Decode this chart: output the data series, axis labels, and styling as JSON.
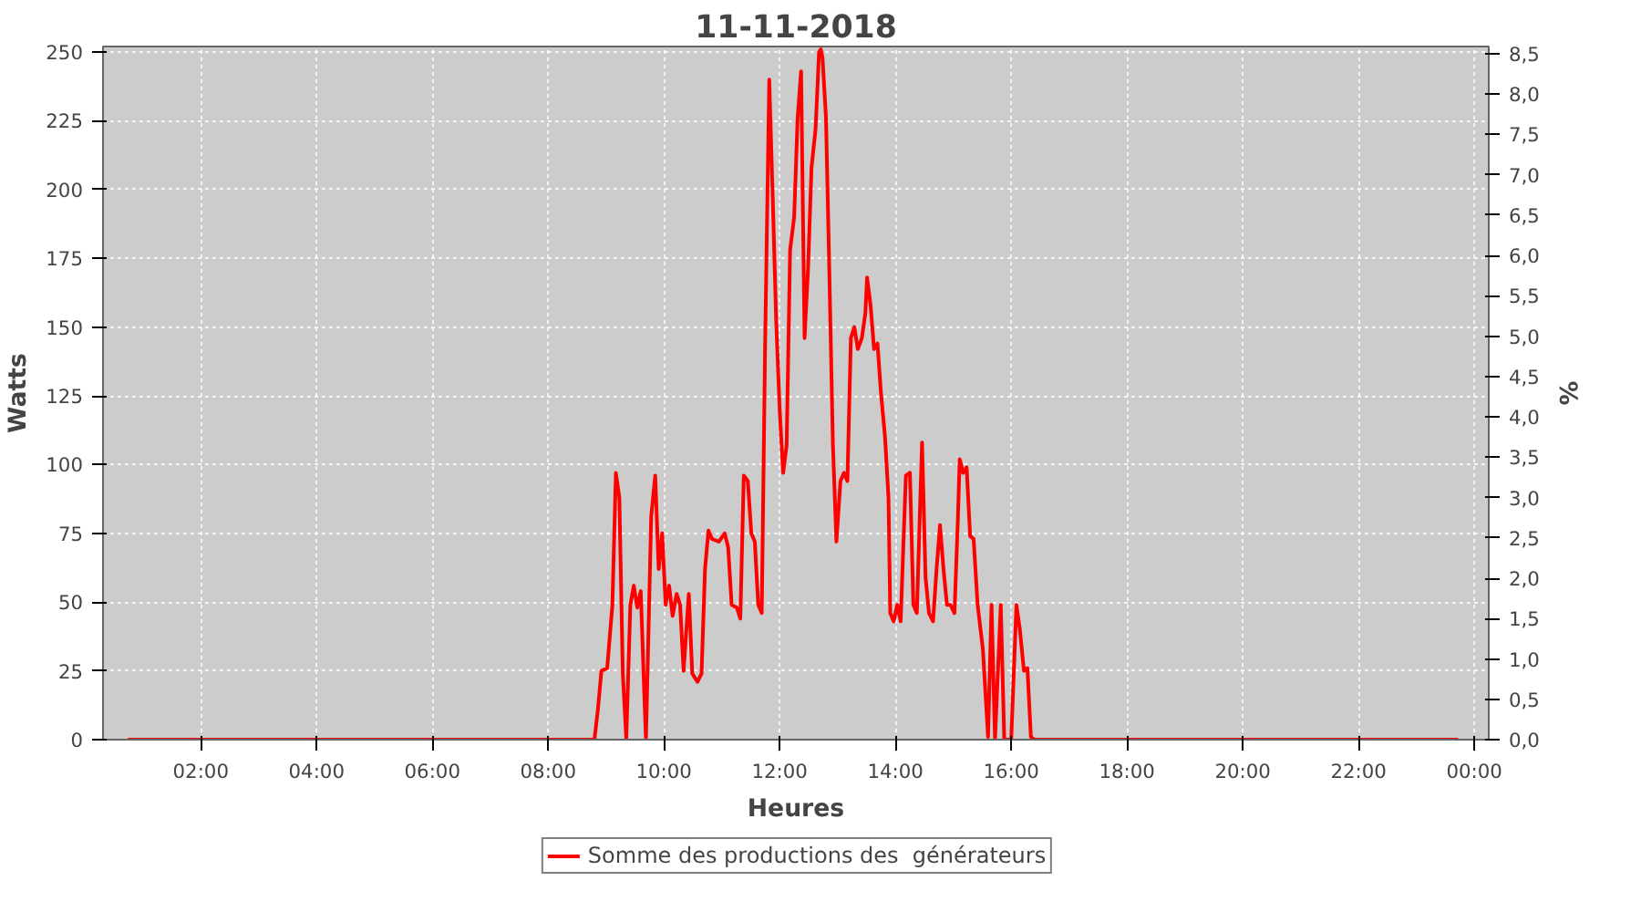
{
  "chart_data": {
    "type": "line",
    "title": "11-11-2018",
    "xlabel": "Heures",
    "ylabel": "Watts",
    "y2label": "%",
    "xlim": [
      0.31,
      24.25
    ],
    "xticks": [
      {
        "value": 2,
        "label": "02:00"
      },
      {
        "value": 4,
        "label": "04:00"
      },
      {
        "value": 6,
        "label": "06:00"
      },
      {
        "value": 8,
        "label": "08:00"
      },
      {
        "value": 10,
        "label": "10:00"
      },
      {
        "value": 12,
        "label": "12:00"
      },
      {
        "value": 14,
        "label": "14:00"
      },
      {
        "value": 16,
        "label": "16:00"
      },
      {
        "value": 18,
        "label": "18:00"
      },
      {
        "value": 20,
        "label": "20:00"
      },
      {
        "value": 22,
        "label": "22:00"
      },
      {
        "value": 24,
        "label": "00:00"
      }
    ],
    "ylim": [
      0,
      252
    ],
    "yticks": [
      0,
      25,
      50,
      75,
      100,
      125,
      150,
      175,
      200,
      225,
      250
    ],
    "y2lim": [
      0,
      8.59
    ],
    "y2ticks": [
      {
        "value": 0,
        "label": "0,0"
      },
      {
        "value": 0.5,
        "label": "0,5"
      },
      {
        "value": 1,
        "label": "1,0"
      },
      {
        "value": 1.5,
        "label": "1,5"
      },
      {
        "value": 2,
        "label": "2,0"
      },
      {
        "value": 2.5,
        "label": "2,5"
      },
      {
        "value": 3,
        "label": "3,0"
      },
      {
        "value": 3.5,
        "label": "3,5"
      },
      {
        "value": 4,
        "label": "4,0"
      },
      {
        "value": 4.5,
        "label": "4,5"
      },
      {
        "value": 5,
        "label": "5,0"
      },
      {
        "value": 5.5,
        "label": "5,5"
      },
      {
        "value": 6,
        "label": "6,0"
      },
      {
        "value": 6.5,
        "label": "6,5"
      },
      {
        "value": 7,
        "label": "7,0"
      },
      {
        "value": 7.5,
        "label": "7,5"
      },
      {
        "value": 8,
        "label": "8,0"
      },
      {
        "value": 8.5,
        "label": "8,5"
      }
    ],
    "grid": true,
    "legend": "bottom",
    "marker": "none",
    "line_style": "solid",
    "series": [
      {
        "name": "Somme des productions des  générateurs",
        "color": "#ff0000",
        "x": [
          0.74,
          8.8,
          8.86,
          8.92,
          9.02,
          9.11,
          9.17,
          9.23,
          9.29,
          9.35,
          9.42,
          9.48,
          9.54,
          9.6,
          9.66,
          9.69,
          9.78,
          9.85,
          9.91,
          9.97,
          10.03,
          10.09,
          10.15,
          10.22,
          10.28,
          10.34,
          10.43,
          10.49,
          10.58,
          10.65,
          10.71,
          10.77,
          10.83,
          10.95,
          11.05,
          11.11,
          11.17,
          11.26,
          11.32,
          11.38,
          11.45,
          11.51,
          11.57,
          11.63,
          11.69,
          11.75,
          11.82,
          11.88,
          11.94,
          12.0,
          12.06,
          12.12,
          12.18,
          12.25,
          12.31,
          12.37,
          12.43,
          12.49,
          12.55,
          12.62,
          12.68,
          12.71,
          12.74,
          12.8,
          12.86,
          12.92,
          12.98,
          13.05,
          13.11,
          13.17,
          13.23,
          13.29,
          13.35,
          13.42,
          13.48,
          13.51,
          13.57,
          13.63,
          13.69,
          13.75,
          13.82,
          13.88,
          13.91,
          13.97,
          14.03,
          14.09,
          14.18,
          14.25,
          14.31,
          14.37,
          14.43,
          14.46,
          14.52,
          14.58,
          14.65,
          14.71,
          14.77,
          14.83,
          14.89,
          14.95,
          15.02,
          15.08,
          15.11,
          15.17,
          15.23,
          15.29,
          15.35,
          15.42,
          15.51,
          15.6,
          15.66,
          15.72,
          15.82,
          15.88,
          16.0,
          16.09,
          16.15,
          16.22,
          16.28,
          16.34,
          16.4,
          23.72
        ],
        "values": [
          0,
          0,
          11,
          25,
          26,
          49,
          97,
          88,
          24,
          0,
          49,
          56,
          48,
          54,
          17,
          0,
          81,
          96,
          62,
          75,
          49,
          56,
          45,
          53,
          49,
          25,
          53,
          24,
          21,
          24,
          62,
          76,
          73,
          72,
          75,
          70,
          49,
          48,
          44,
          96,
          94,
          75,
          72,
          49,
          46,
          146,
          240,
          197,
          152,
          120,
          97,
          107,
          178,
          190,
          226,
          243,
          146,
          171,
          208,
          222,
          250,
          251,
          248,
          226,
          168,
          107,
          72,
          94,
          97,
          94,
          146,
          150,
          142,
          146,
          155,
          168,
          158,
          142,
          144,
          126,
          110,
          88,
          46,
          43,
          49,
          43,
          96,
          97,
          49,
          46,
          88,
          108,
          59,
          46,
          43,
          62,
          78,
          62,
          49,
          49,
          46,
          81,
          102,
          97,
          99,
          74,
          73,
          49,
          33,
          1,
          49,
          0,
          49,
          0,
          0,
          49,
          40,
          25,
          26,
          1,
          0,
          0
        ]
      }
    ]
  }
}
